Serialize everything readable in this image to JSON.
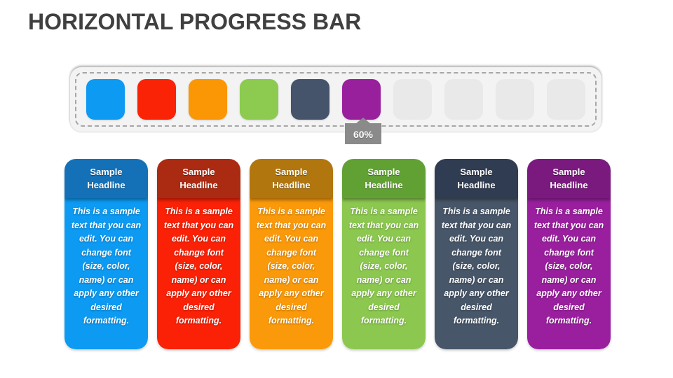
{
  "slide": {
    "title": "HORIZONTAL PROGRESS BAR",
    "title_color": "#404040",
    "background_color": "#ffffff"
  },
  "progress_bar": {
    "total_segments": 10,
    "filled_segments": 6,
    "percent_value": 60,
    "track_color": "#f3f3f3",
    "dashed_border_color": "#a6a6a6",
    "empty_segment_color": "#e9e9e9",
    "segment_colors": [
      "#0d9af2",
      "#fb2306",
      "#fb9705",
      "#8ccb50",
      "#45546a",
      "#99209d"
    ],
    "badge": {
      "label": "60%",
      "color": "#8a8a8a",
      "text_color": "#ffffff"
    }
  },
  "cards": [
    {
      "headline": "Sample Headline",
      "body": "This is a sample text that you can edit. You can change font (size, color, name) or can apply any other desired formatting.",
      "header_color": "#1471b8",
      "body_color": "#0d9af2"
    },
    {
      "headline": "Sample Headline",
      "body": "This is a sample text that you can edit. You can change font (size, color, name) or can apply any other desired formatting.",
      "header_color": "#ab2a12",
      "body_color": "#fa2106"
    },
    {
      "headline": "Sample Headline",
      "body": "This is a sample text that you can edit. You can change font (size, color, name) or can apply any other desired formatting.",
      "header_color": "#b1760e",
      "body_color": "#fa990a"
    },
    {
      "headline": "Sample Headline",
      "body": "This is a sample text that you can edit. You can change font (size, color, name) or can apply any other desired formatting.",
      "header_color": "#61a134",
      "body_color": "#8cc850"
    },
    {
      "headline": "Sample Headline",
      "body": "This is a sample text that you can edit. You can change font (size, color, name) or can apply any other desired formatting.",
      "header_color": "#303c51",
      "body_color": "#475669"
    },
    {
      "headline": "Sample Headline",
      "body": "This is a sample text that you can edit. You can change font (size, color, name) or can apply any other desired formatting.",
      "header_color": "#7a1a7e",
      "body_color": "#9a1f9e"
    }
  ]
}
